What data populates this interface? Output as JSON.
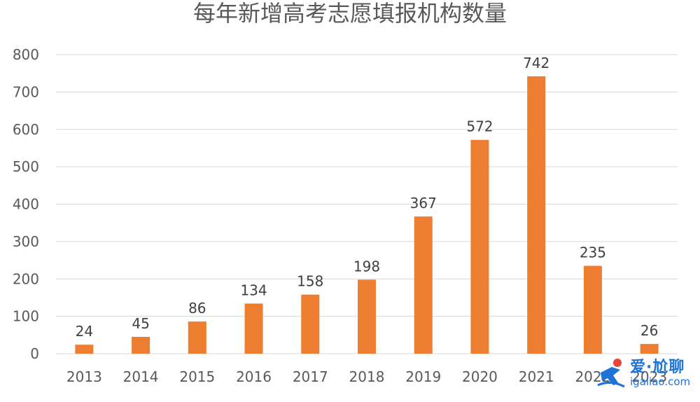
{
  "chart_data": {
    "type": "bar",
    "title": "每年新增高考志愿填报机构数量",
    "xlabel": "",
    "ylabel": "",
    "categories": [
      "2013",
      "2014",
      "2015",
      "2016",
      "2017",
      "2018",
      "2019",
      "2020",
      "2021",
      "2022",
      "2023"
    ],
    "values": [
      24,
      45,
      86,
      134,
      158,
      198,
      367,
      572,
      742,
      235,
      26
    ],
    "ylim": [
      0,
      800
    ],
    "yticks": [
      0,
      100,
      200,
      300,
      400,
      500,
      600,
      700,
      800
    ],
    "grid": true,
    "legend": "none",
    "data_labels": true,
    "colors": {
      "bar": "#ed7d31",
      "grid": "#d9d9d9",
      "text": "#595959"
    }
  },
  "watermark": {
    "brand": "爱·尬聊",
    "domain": "igaliao.com",
    "icon": "runner-logo-icon",
    "color": "#1e73d8"
  }
}
